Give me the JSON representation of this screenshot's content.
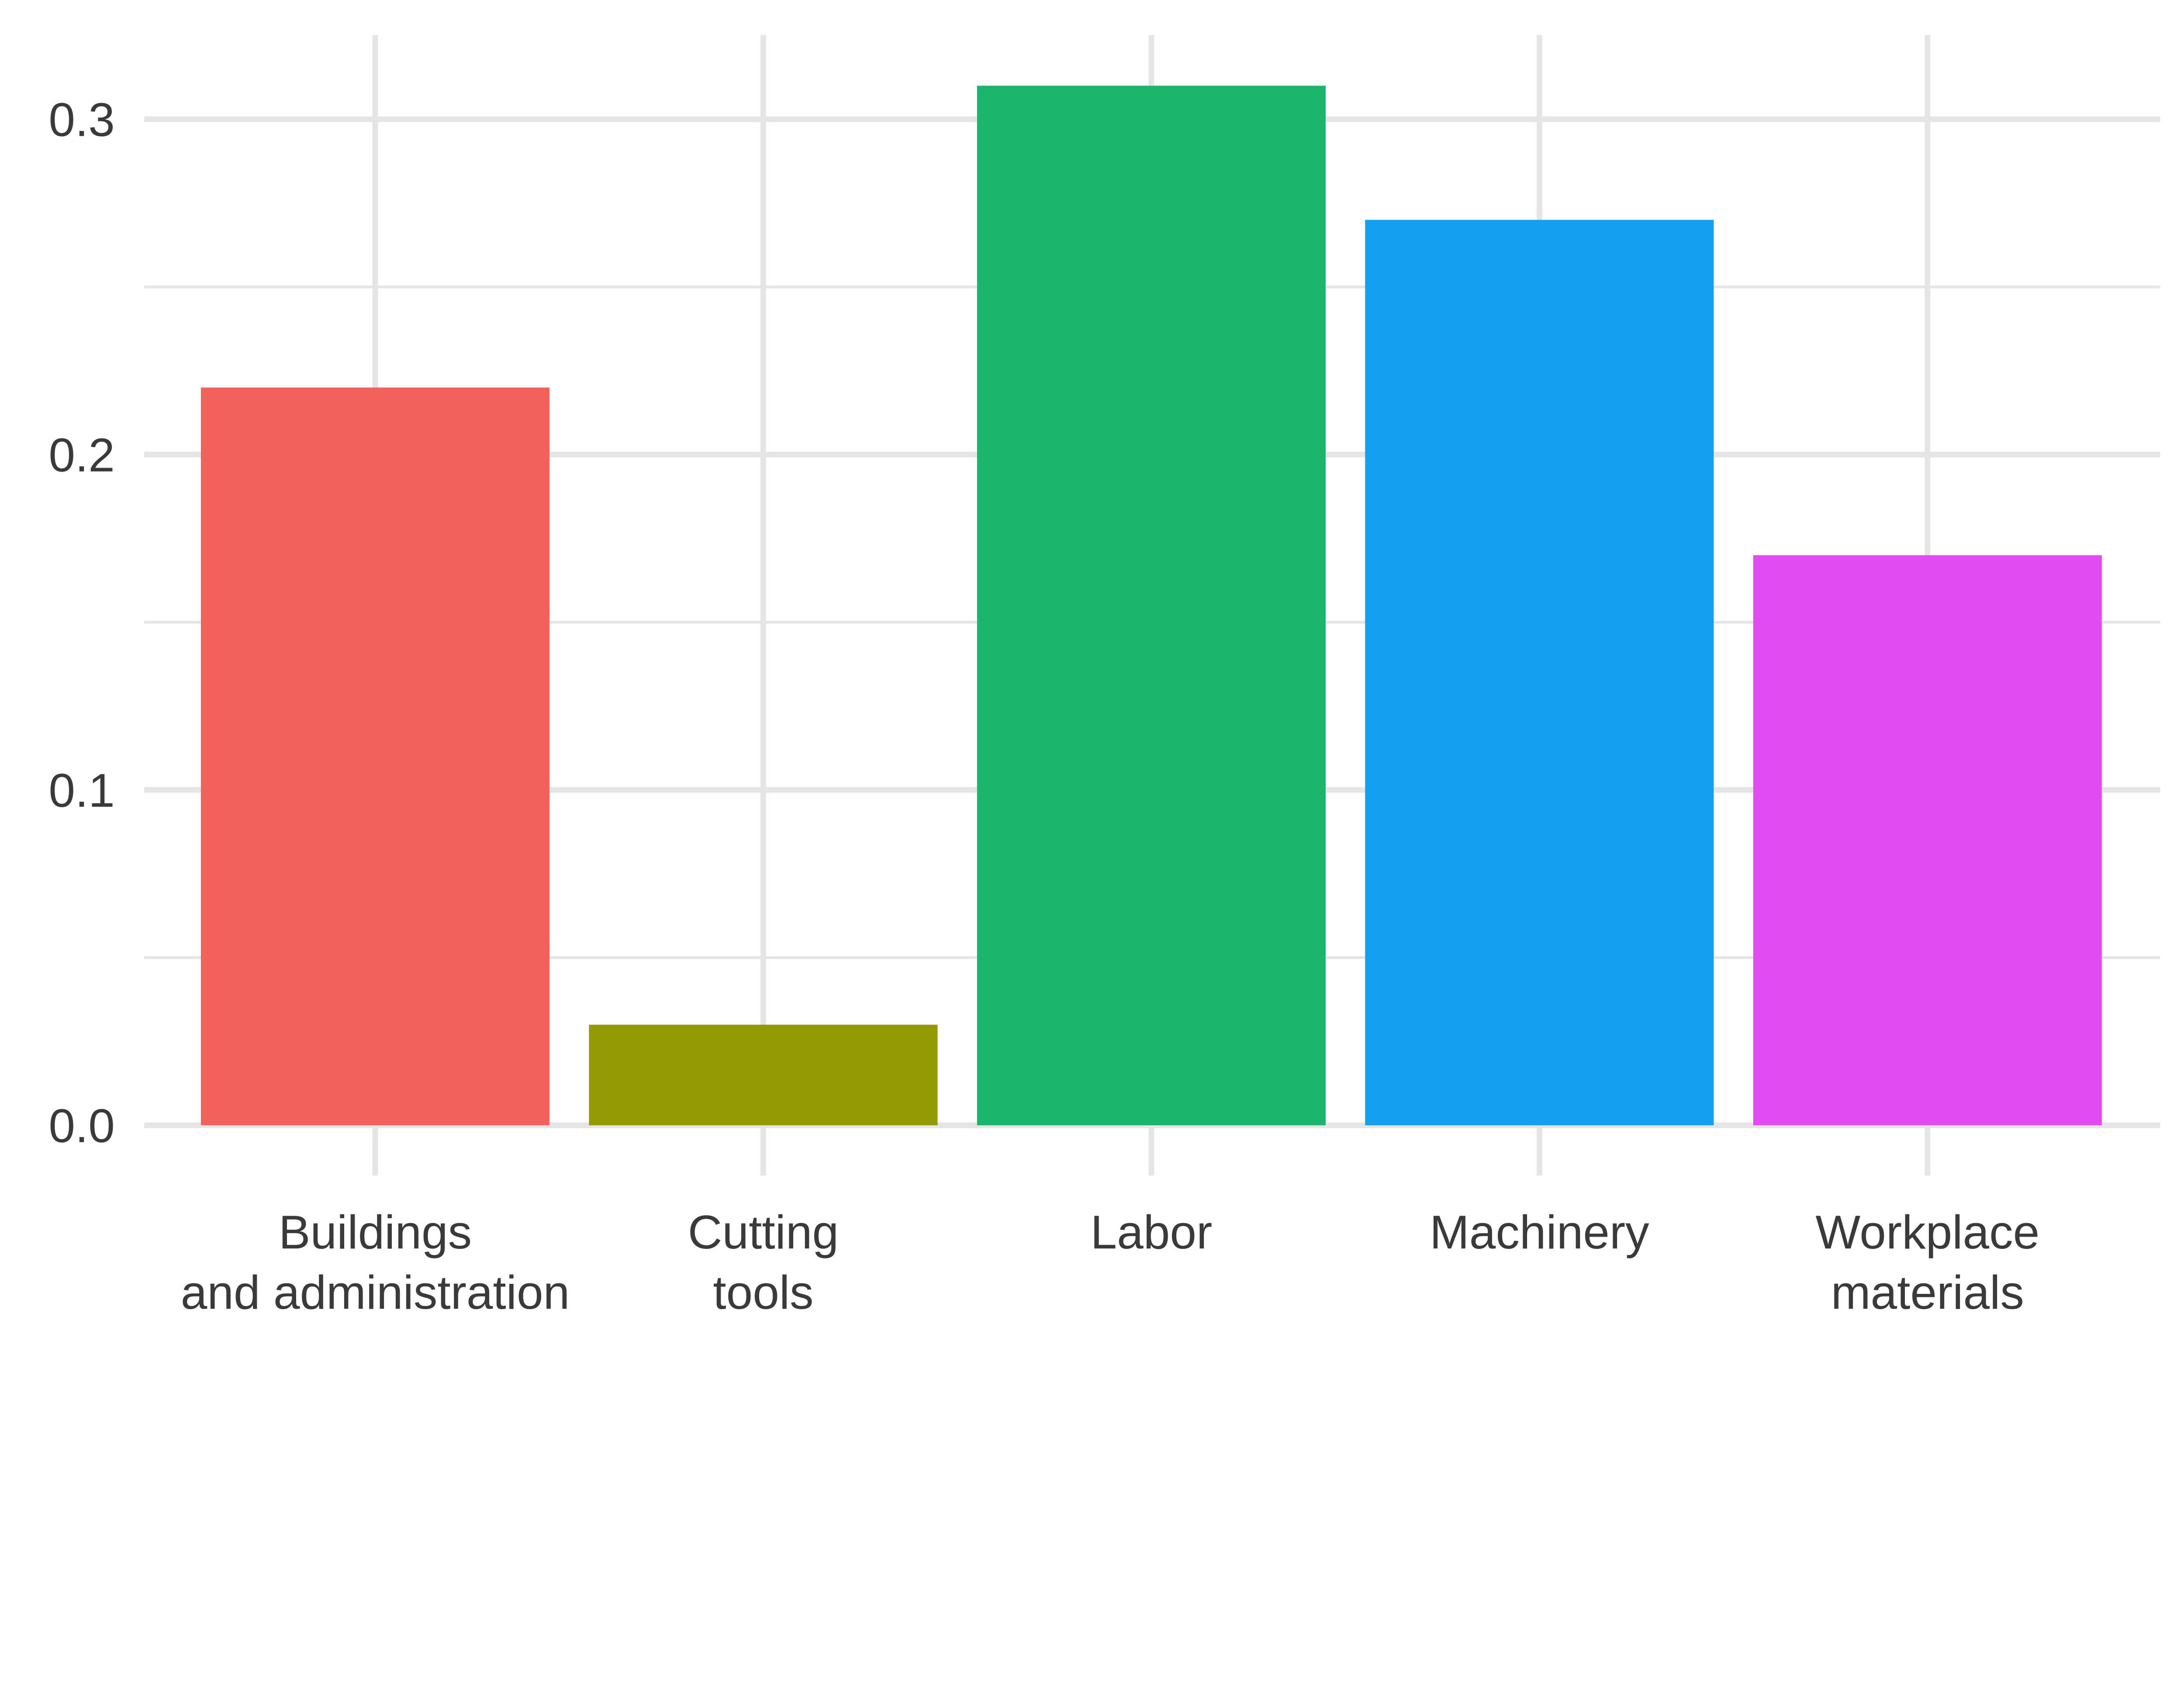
{
  "chart_data": {
    "type": "bar",
    "title": "",
    "xlabel": "",
    "ylabel": "",
    "categories": [
      [
        "Buildings",
        "and administration"
      ],
      [
        "Cutting",
        "tools"
      ],
      [
        "Labor"
      ],
      [
        "Machinery"
      ],
      [
        "Workplace",
        "materials"
      ]
    ],
    "values": [
      0.22,
      0.03,
      0.31,
      0.27,
      0.17
    ],
    "colors": [
      "#F2615C",
      "#949A04",
      "#1BB56B",
      "#149FF1",
      "#E04CEF"
    ],
    "ylim": [
      0,
      0.325
    ],
    "yticks": [
      0.0,
      0.1,
      0.2,
      0.3
    ],
    "ytick_labels": [
      "0.0",
      "0.1",
      "0.2",
      "0.3"
    ],
    "grid": true,
    "legend": "none",
    "grid_color": "#E5E5E5"
  }
}
